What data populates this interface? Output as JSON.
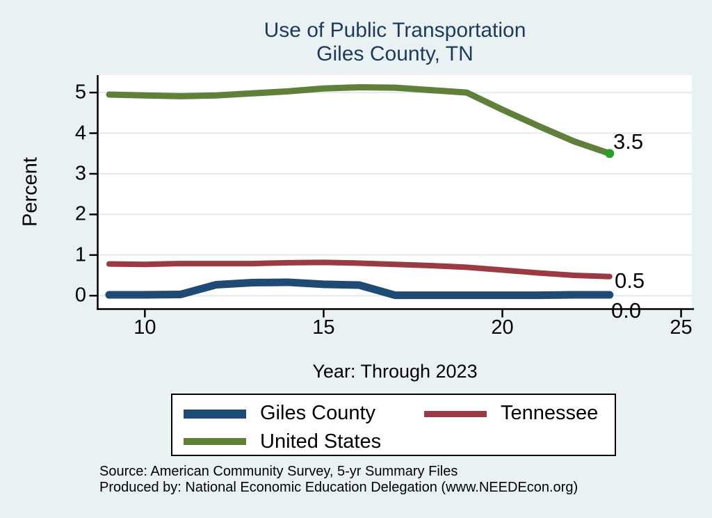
{
  "figure": {
    "title_line1": "Use of Public Transportation",
    "title_line2": "Giles County, TN",
    "y_axis_label": "Percent",
    "x_axis_caption": "Year: Through 2023",
    "source_line1": "Source: American Community Survey, 5-yr Summary Files",
    "source_line2": "Produced by: National Economic Education Delegation (www.NEEDEcon.org)"
  },
  "colors": {
    "background": "#eaf1f3",
    "plot_background": "#ffffff",
    "gridline": "#e0ebee",
    "axis": "#000000",
    "title": "#1b3a5e",
    "giles_county": "#1d4b75",
    "tennessee": "#9b3a42",
    "united_states": "#60803a",
    "end_marker": "#2aa02a"
  },
  "chart_data": {
    "type": "line",
    "title": "Use of Public Transportation — Giles County, TN",
    "xlabel": "Year: Through 2023",
    "ylabel": "Percent",
    "grid": "horizontal",
    "legend_position": "bottom",
    "x": [
      9,
      10,
      11,
      12,
      13,
      14,
      15,
      16,
      17,
      18,
      19,
      20,
      21,
      22,
      23
    ],
    "xlim": [
      8.68,
      25.3
    ],
    "ylim": [
      -0.33,
      5.43
    ],
    "x_tick_values": [
      10,
      15,
      20,
      25
    ],
    "x_ticks": [
      "10",
      "15",
      "20",
      "25"
    ],
    "y_tick_values": [
      0,
      1,
      2,
      3,
      4,
      5
    ],
    "y_ticks": [
      "0",
      "1",
      "2",
      "3",
      "4",
      "5"
    ],
    "series": [
      {
        "name": "Giles County",
        "color": "#1d4b75",
        "line_width": 11,
        "end_label": "0.0",
        "values": [
          0.02,
          0.02,
          0.03,
          0.27,
          0.32,
          0.33,
          0.28,
          0.26,
          0.01,
          0.01,
          0.01,
          0.01,
          0.01,
          0.02,
          0.02
        ]
      },
      {
        "name": "Tennessee",
        "color": "#9b3a42",
        "line_width": 8,
        "end_label": "0.5",
        "values": [
          0.78,
          0.77,
          0.79,
          0.79,
          0.79,
          0.81,
          0.82,
          0.8,
          0.77,
          0.74,
          0.7,
          0.63,
          0.56,
          0.5,
          0.47
        ]
      },
      {
        "name": "United States",
        "color": "#60803a",
        "line_width": 9,
        "end_label": "3.5",
        "end_marker_color": "#2aa02a",
        "values": [
          4.95,
          4.93,
          4.91,
          4.93,
          4.98,
          5.03,
          5.1,
          5.13,
          5.12,
          5.06,
          5.0,
          4.58,
          4.18,
          3.8,
          3.5
        ]
      }
    ]
  }
}
